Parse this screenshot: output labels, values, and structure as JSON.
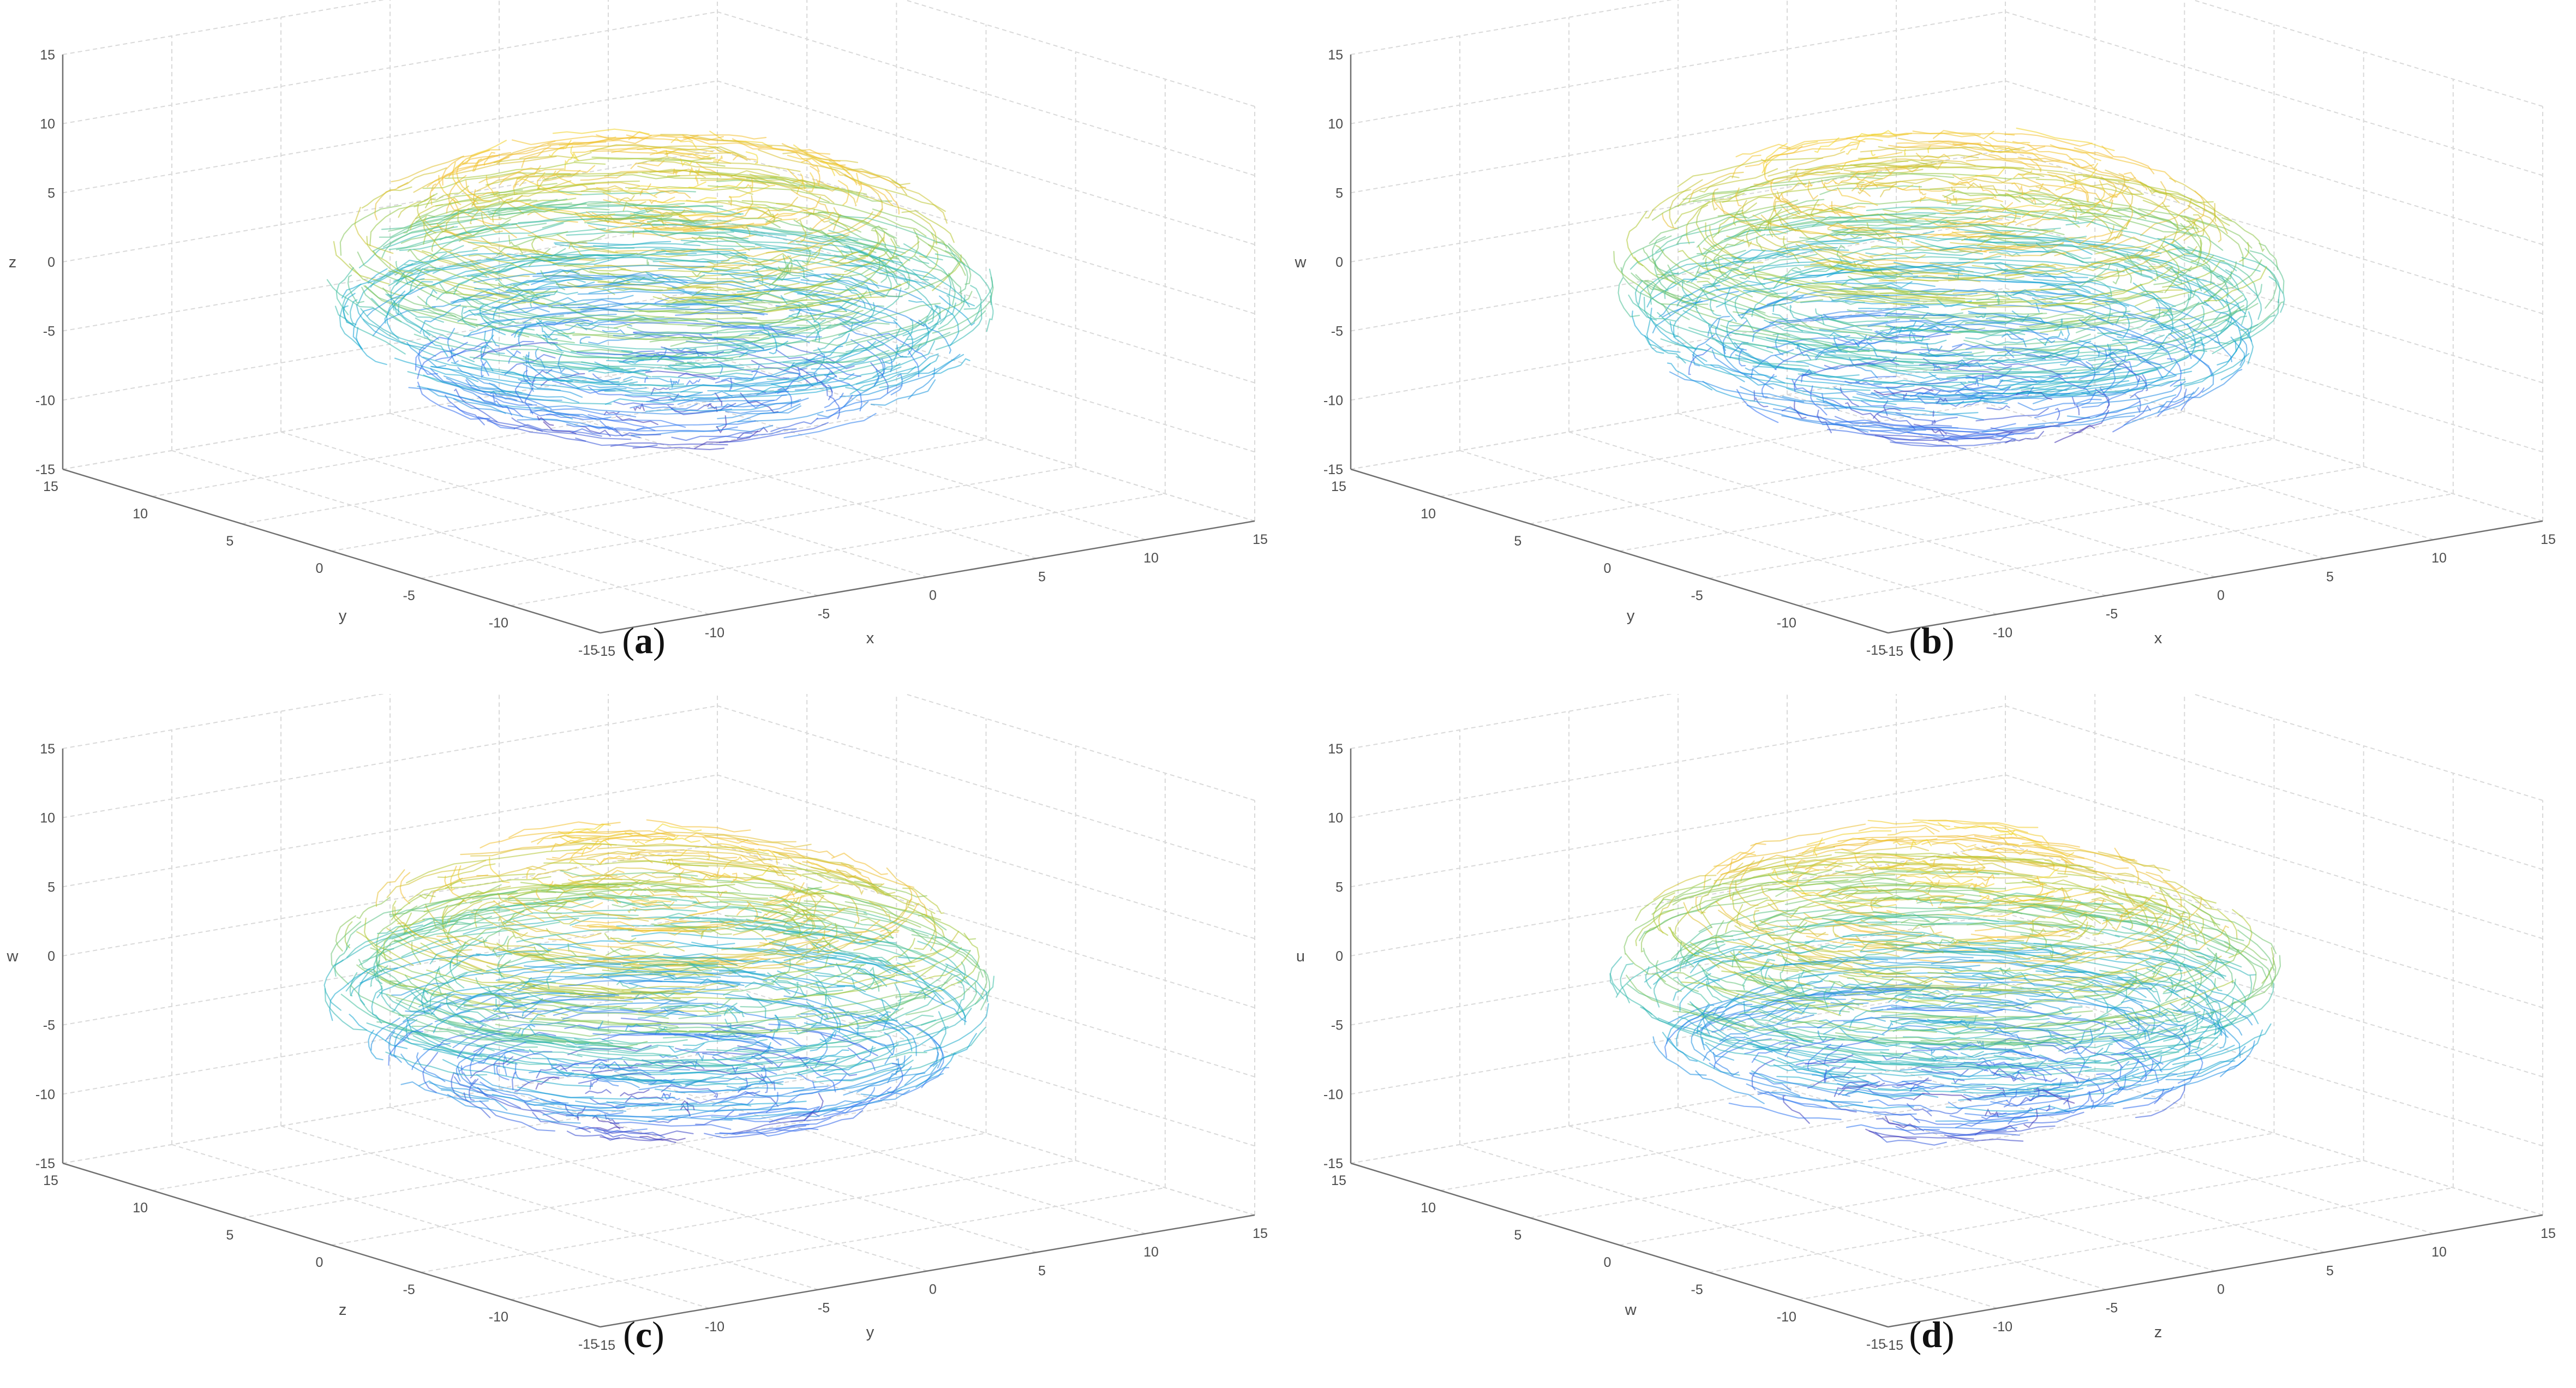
{
  "chart_data": [
    {
      "type": "scatter",
      "subtype": "3d-trajectory",
      "panel_label": "a",
      "xlabel": "x",
      "ylabel": "y",
      "zlabel": "z",
      "xlim": [
        -15,
        15
      ],
      "ylim": [
        -15,
        15
      ],
      "zlim": [
        -15,
        15
      ],
      "xticks": [
        "-15",
        "-10",
        "-5",
        "0",
        "5",
        "10",
        "15"
      ],
      "yticks": [
        "-15",
        "-10",
        "-5",
        "0",
        "5",
        "10",
        "15"
      ],
      "zticks": [
        "-15",
        "-10",
        "-5",
        "0",
        "5",
        "10",
        "15"
      ],
      "grid": true,
      "colormap": [
        "#3e26a8",
        "#2f6ff3",
        "#10a4d4",
        "#3fbfa0",
        "#a7c72f",
        "#f2bc30",
        "#f0d820"
      ],
      "attractor_extent": {
        "x": [
          -12,
          12
        ],
        "y": [
          -12,
          12
        ],
        "z": [
          -12,
          12
        ]
      }
    },
    {
      "type": "scatter",
      "subtype": "3d-trajectory",
      "panel_label": "b",
      "xlabel": "x",
      "ylabel": "y",
      "zlabel": "w",
      "xlim": [
        -15,
        15
      ],
      "ylim": [
        -15,
        15
      ],
      "zlim": [
        -15,
        15
      ],
      "xticks": [
        "-15",
        "-10",
        "-5",
        "0",
        "5",
        "10",
        "15"
      ],
      "yticks": [
        "-15",
        "-10",
        "-5",
        "0",
        "5",
        "10",
        "15"
      ],
      "zticks": [
        "-15",
        "-10",
        "-5",
        "0",
        "5",
        "10",
        "15"
      ],
      "grid": true,
      "colormap": [
        "#3e26a8",
        "#2f6ff3",
        "#10a4d4",
        "#3fbfa0",
        "#a7c72f",
        "#f2bc30",
        "#f0d820"
      ],
      "attractor_extent": {
        "x": [
          -12,
          12
        ],
        "y": [
          -12,
          12
        ],
        "z": [
          -12,
          12
        ]
      }
    },
    {
      "type": "scatter",
      "subtype": "3d-trajectory",
      "panel_label": "c",
      "xlabel": "y",
      "ylabel": "z",
      "zlabel": "w",
      "xlim": [
        -15,
        15
      ],
      "ylim": [
        -15,
        15
      ],
      "zlim": [
        -15,
        15
      ],
      "xticks": [
        "-15",
        "-10",
        "-5",
        "0",
        "5",
        "10",
        "15"
      ],
      "yticks": [
        "-15",
        "-10",
        "-5",
        "0",
        "5",
        "10",
        "15"
      ],
      "zticks": [
        "-15",
        "-10",
        "-5",
        "0",
        "5",
        "10",
        "15"
      ],
      "grid": true,
      "colormap": [
        "#3e26a8",
        "#2f6ff3",
        "#10a4d4",
        "#3fbfa0",
        "#a7c72f",
        "#f2bc30",
        "#f0d820"
      ],
      "attractor_extent": {
        "x": [
          -12,
          12
        ],
        "y": [
          -12,
          12
        ],
        "z": [
          -12,
          12
        ]
      }
    },
    {
      "type": "scatter",
      "subtype": "3d-trajectory",
      "panel_label": "d",
      "xlabel": "z",
      "ylabel": "w",
      "zlabel": "u",
      "xlim": [
        -15,
        15
      ],
      "ylim": [
        -15,
        15
      ],
      "zlim": [
        -15,
        15
      ],
      "xticks": [
        "-15",
        "-10",
        "-5",
        "0",
        "5",
        "10",
        "15"
      ],
      "yticks": [
        "-15",
        "-10",
        "-5",
        "0",
        "5",
        "10",
        "15"
      ],
      "zticks": [
        "-15",
        "-10",
        "-5",
        "0",
        "5",
        "10",
        "15"
      ],
      "grid": true,
      "colormap": [
        "#3e26a8",
        "#2f6ff3",
        "#10a4d4",
        "#3fbfa0",
        "#a7c72f",
        "#f2bc30",
        "#f0d820"
      ],
      "attractor_extent": {
        "x": [
          -12,
          12
        ],
        "y": [
          -12,
          12
        ],
        "z": [
          -12,
          12
        ]
      }
    }
  ]
}
